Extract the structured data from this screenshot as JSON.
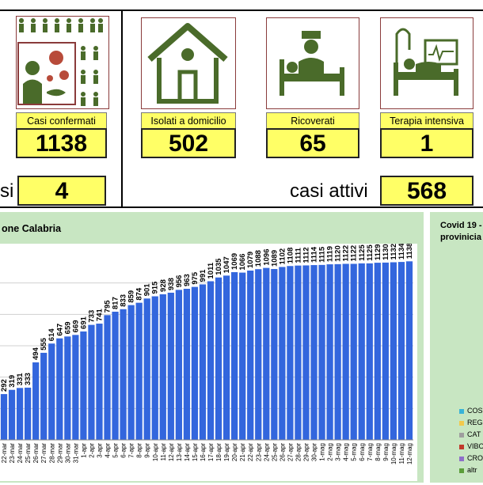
{
  "cards": {
    "confermati": {
      "label": "Casi confermati",
      "value": "1138"
    },
    "isolati": {
      "label": "Isolati a domicilio",
      "value": "502"
    },
    "ricoverati": {
      "label": "Ricoverati",
      "value": "65"
    },
    "terapia": {
      "label": "Terapia intensiva",
      "value": "1"
    }
  },
  "left_partial": {
    "label": "si",
    "value": "4"
  },
  "attivi": {
    "label": "casi attivi",
    "value": "568"
  },
  "chart_data": {
    "type": "bar",
    "title": "one Calabria",
    "color": "#3366dd",
    "categories": [
      "22-mar",
      "23-mar",
      "24-mar",
      "25-mar",
      "26-mar",
      "27-mar",
      "28-mar",
      "29-mar",
      "30-mar",
      "31-mar",
      "1-apr",
      "2-apr",
      "3-apr",
      "4-apr",
      "5-apr",
      "6-apr",
      "7-apr",
      "8-apr",
      "9-apr",
      "10-apr",
      "11-apr",
      "12-apr",
      "13-apr",
      "14-apr",
      "15-apr",
      "16-apr",
      "17-apr",
      "18-apr",
      "19-apr",
      "20-apr",
      "21-apr",
      "22-apr",
      "23-apr",
      "24-apr",
      "25-apr",
      "26-apr",
      "27-apr",
      "28-apr",
      "29-apr",
      "30-apr",
      "1-mag",
      "2-mag",
      "3-mag",
      "4-mag",
      "5-mag",
      "6-mag",
      "7-mag",
      "8-mag",
      "9-mag",
      "10-mag",
      "11-mag",
      "12-mag"
    ],
    "values": [
      292,
      319,
      331,
      333,
      494,
      555,
      614,
      647,
      659,
      669,
      691,
      733,
      741,
      795,
      817,
      833,
      859,
      874,
      901,
      915,
      928,
      938,
      956,
      963,
      975,
      991,
      1011,
      1035,
      1047,
      1069,
      1066,
      1079,
      1088,
      1096,
      1089,
      1102,
      1108,
      1111,
      1112,
      1114,
      1115,
      1119,
      1120,
      1122,
      1122,
      1125,
      1125,
      1129,
      1130,
      1132,
      1134,
      1138
    ],
    "ylim": [
      0,
      1200
    ]
  },
  "side_chart": {
    "title_line1": "Covid 19 -",
    "title_line2": "provinicia",
    "legend": [
      {
        "name": "COS",
        "color": "#39b3d7"
      },
      {
        "name": "REG",
        "color": "#f2c94c"
      },
      {
        "name": "CAT",
        "color": "#9e9e9e"
      },
      {
        "name": "VIBO",
        "color": "#c0392b"
      },
      {
        "name": "CRO",
        "color": "#8e6fc9"
      },
      {
        "name": "altr",
        "color": "#5a9e3a"
      }
    ]
  }
}
